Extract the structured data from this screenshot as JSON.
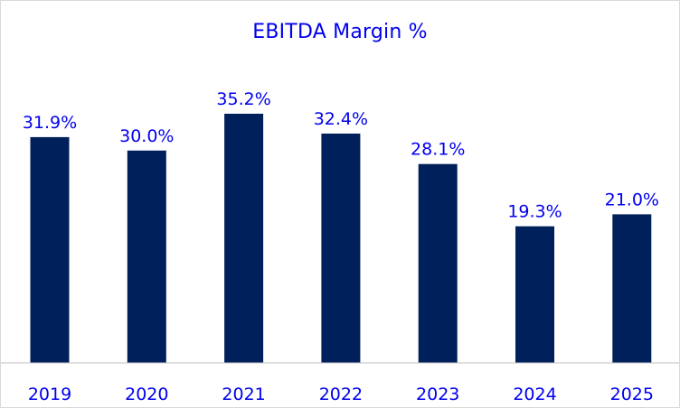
{
  "chart_data": {
    "type": "bar",
    "title": "EBITDA Margin %",
    "xlabel": "",
    "ylabel": "",
    "categories": [
      "2019",
      "2020",
      "2021",
      "2022",
      "2023",
      "2024",
      "2025"
    ],
    "values": [
      31.9,
      30.0,
      35.2,
      32.4,
      28.1,
      19.3,
      21.0
    ],
    "data_labels": [
      "31.9%",
      "30.0%",
      "35.2%",
      "32.4%",
      "28.1%",
      "19.3%",
      "21.0%"
    ],
    "ylim": [
      0,
      40
    ],
    "grid": false,
    "legend": "none",
    "bar_color": "#00205B",
    "text_color": "#0000EE"
  }
}
